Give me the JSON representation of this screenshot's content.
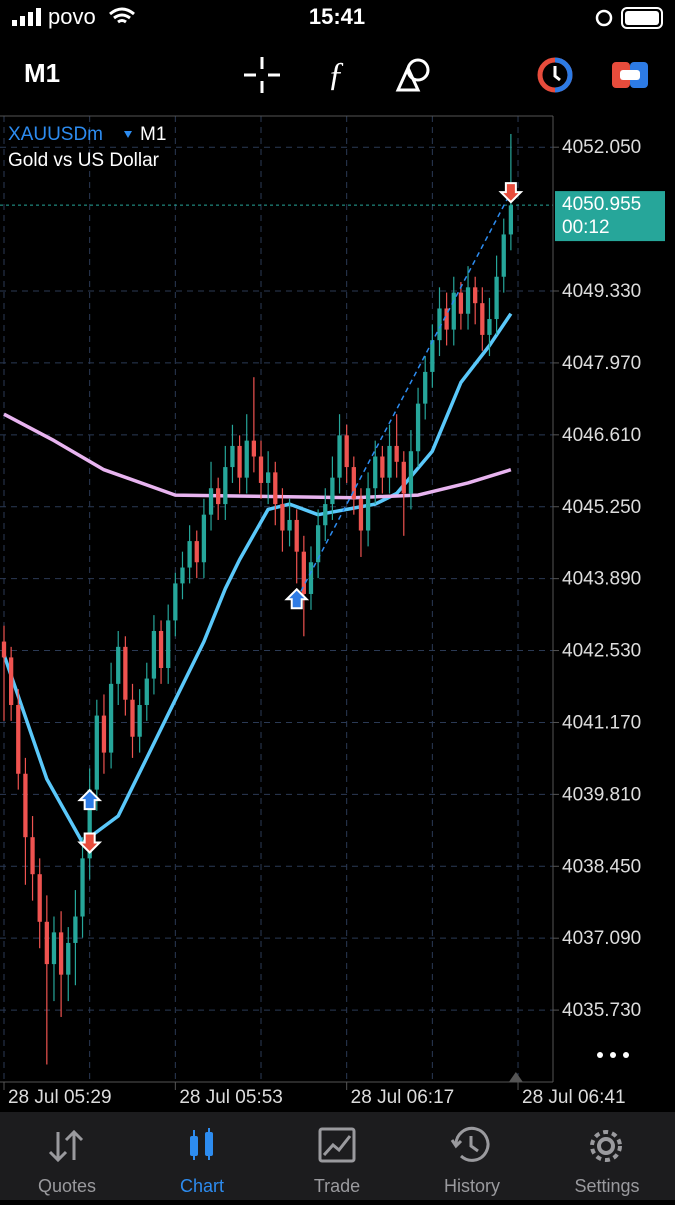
{
  "status_bar": {
    "carrier": "povo",
    "time": "15:41"
  },
  "toolbar": {
    "timeframe": "M1"
  },
  "chart_header": {
    "symbol": "XAUUSDm",
    "timeframe": "M1",
    "description": "Gold vs US Dollar"
  },
  "chart_data": {
    "type": "candlestick",
    "up_color": "#26a69a",
    "down_color": "#ef5350",
    "grid": true,
    "xlim": [
      -0.56,
      76.9
    ],
    "ylim": [
      4034.37,
      4052.64
    ],
    "xticks": [
      {
        "value": 0,
        "label": "28 Jul 05:29"
      },
      {
        "value": 24,
        "label": "28 Jul 05:53"
      },
      {
        "value": 48,
        "label": "28 Jul 06:17"
      },
      {
        "value": 72,
        "label": "28 Jul 06:41"
      }
    ],
    "yticks": [
      {
        "value": 4052.05,
        "label": "4052.050"
      },
      {
        "value": 4049.33,
        "label": "4049.330"
      },
      {
        "value": 4047.97,
        "label": "4047.970"
      },
      {
        "value": 4046.61,
        "label": "4046.610"
      },
      {
        "value": 4045.25,
        "label": "4045.250"
      },
      {
        "value": 4043.89,
        "label": "4043.890"
      },
      {
        "value": 4042.53,
        "label": "4042.530"
      },
      {
        "value": 4041.17,
        "label": "4041.170"
      },
      {
        "value": 4039.81,
        "label": "4039.810"
      },
      {
        "value": 4038.45,
        "label": "4038.450"
      },
      {
        "value": 4037.09,
        "label": "4037.090"
      },
      {
        "value": 4035.73,
        "label": "4035.730"
      }
    ],
    "candles": [
      [
        4042.7,
        4043.0,
        4041.2,
        4042.4
      ],
      [
        4042.4,
        4042.6,
        4041.2,
        4041.5
      ],
      [
        4041.5,
        4041.8,
        4039.9,
        4040.2
      ],
      [
        4040.2,
        4040.5,
        4038.1,
        4039.0
      ],
      [
        4039.0,
        4039.4,
        4037.8,
        4038.3
      ],
      [
        4038.3,
        4038.6,
        4036.9,
        4037.4
      ],
      [
        4037.4,
        4037.9,
        4034.7,
        4036.6
      ],
      [
        4036.6,
        4037.5,
        4035.9,
        4037.2
      ],
      [
        4037.2,
        4037.6,
        4035.6,
        4036.4
      ],
      [
        4036.4,
        4037.3,
        4035.9,
        4037.0
      ],
      [
        4037.0,
        4038.0,
        4036.2,
        4037.5
      ],
      [
        4037.5,
        4039.0,
        4037.1,
        4038.6
      ],
      [
        4038.6,
        4040.3,
        4038.2,
        4039.9
      ],
      [
        4039.9,
        4041.6,
        4039.5,
        4041.3
      ],
      [
        4041.3,
        4041.7,
        4040.2,
        4040.6
      ],
      [
        4040.6,
        4042.3,
        4040.3,
        4041.9
      ],
      [
        4041.9,
        4042.9,
        4041.5,
        4042.6
      ],
      [
        4042.6,
        4042.8,
        4041.3,
        4041.6
      ],
      [
        4041.6,
        4041.9,
        4040.5,
        4040.9
      ],
      [
        4040.9,
        4041.8,
        4040.6,
        4041.5
      ],
      [
        4041.5,
        4042.3,
        4041.2,
        4042.0
      ],
      [
        4042.0,
        4043.2,
        4041.7,
        4042.9
      ],
      [
        4042.9,
        4043.1,
        4041.9,
        4042.2
      ],
      [
        4042.2,
        4043.4,
        4041.9,
        4043.1
      ],
      [
        4043.1,
        4044.0,
        4042.8,
        4043.8
      ],
      [
        4043.8,
        4044.4,
        4043.5,
        4044.1
      ],
      [
        4044.1,
        4044.9,
        4043.8,
        4044.6
      ],
      [
        4044.6,
        4044.8,
        4043.9,
        4044.2
      ],
      [
        4044.2,
        4045.4,
        4043.9,
        4045.1
      ],
      [
        4045.1,
        4046.1,
        4044.8,
        4045.6
      ],
      [
        4045.6,
        4045.8,
        4045.0,
        4045.3
      ],
      [
        4045.3,
        4046.4,
        4045.0,
        4046.0
      ],
      [
        4046.0,
        4046.8,
        4045.7,
        4046.4
      ],
      [
        4046.4,
        4046.6,
        4045.5,
        4045.8
      ],
      [
        4045.8,
        4047.0,
        4045.5,
        4046.5
      ],
      [
        4046.5,
        4047.7,
        4045.9,
        4046.2
      ],
      [
        4046.2,
        4046.5,
        4045.4,
        4045.7
      ],
      [
        4045.7,
        4046.3,
        4045.3,
        4045.9
      ],
      [
        4045.9,
        4046.1,
        4044.9,
        4045.3
      ],
      [
        4045.3,
        4045.6,
        4044.4,
        4044.8
      ],
      [
        4044.8,
        4045.4,
        4044.5,
        4045.0
      ],
      [
        4045.0,
        4045.2,
        4043.8,
        4044.4
      ],
      [
        4044.4,
        4044.7,
        4042.8,
        4043.6
      ],
      [
        4043.6,
        4044.5,
        4043.3,
        4044.2
      ],
      [
        4044.2,
        4045.2,
        4043.9,
        4044.9
      ],
      [
        4044.9,
        4045.6,
        4044.6,
        4045.3
      ],
      [
        4045.3,
        4046.2,
        4045.0,
        4045.8
      ],
      [
        4045.8,
        4047.0,
        4045.5,
        4046.6
      ],
      [
        4046.6,
        4046.8,
        4045.7,
        4046.0
      ],
      [
        4046.0,
        4046.2,
        4045.1,
        4045.4
      ],
      [
        4045.4,
        4045.6,
        4044.3,
        4044.8
      ],
      [
        4044.8,
        4045.9,
        4044.5,
        4045.6
      ],
      [
        4045.6,
        4046.5,
        4045.3,
        4046.2
      ],
      [
        4046.2,
        4046.4,
        4045.5,
        4045.8
      ],
      [
        4045.8,
        4046.8,
        4045.5,
        4046.4
      ],
      [
        4046.4,
        4047.0,
        4045.8,
        4046.1
      ],
      [
        4046.1,
        4046.3,
        4044.7,
        4045.5
      ],
      [
        4045.5,
        4046.7,
        4045.2,
        4046.3
      ],
      [
        4046.3,
        4047.5,
        4046.0,
        4047.2
      ],
      [
        4047.2,
        4048.1,
        4046.9,
        4047.8
      ],
      [
        4047.8,
        4048.7,
        4047.5,
        4048.4
      ],
      [
        4048.4,
        4049.4,
        4048.1,
        4049.0
      ],
      [
        4049.0,
        4049.3,
        4048.3,
        4048.6
      ],
      [
        4048.6,
        4049.6,
        4048.3,
        4049.3
      ],
      [
        4049.3,
        4049.5,
        4048.6,
        4048.9
      ],
      [
        4048.9,
        4049.8,
        4048.6,
        4049.4
      ],
      [
        4049.4,
        4049.6,
        4048.7,
        4049.1
      ],
      [
        4049.1,
        4049.4,
        4048.2,
        4048.5
      ],
      [
        4048.5,
        4049.2,
        4048.1,
        4048.8
      ],
      [
        4048.8,
        4050.0,
        4048.5,
        4049.6
      ],
      [
        4049.6,
        4050.7,
        4049.3,
        4050.4
      ],
      [
        4050.4,
        4052.3,
        4050.1,
        4050.95
      ]
    ],
    "series": [
      {
        "color": "#5ac8fa",
        "x": [
          0,
          6,
          11,
          16,
          20,
          24,
          28,
          31,
          33,
          37,
          40,
          44,
          48,
          52,
          55,
          60,
          64,
          68,
          71
        ],
        "values": [
          4042.45,
          4040.1,
          4038.9,
          4039.4,
          4040.5,
          4041.6,
          4042.7,
          4043.7,
          4044.25,
          4045.2,
          4045.3,
          4045.1,
          4045.2,
          4045.3,
          4045.5,
          4046.3,
          4047.6,
          4048.3,
          4048.9
        ]
      },
      {
        "color": "#e8b4f0",
        "x": [
          0,
          7,
          14,
          24,
          35,
          49,
          58,
          65,
          71
        ],
        "values": [
          4047.0,
          4046.5,
          4045.95,
          4045.47,
          4045.45,
          4045.42,
          4045.47,
          4045.7,
          4045.95
        ]
      }
    ],
    "trades": [
      {
        "x": 12,
        "price": 4039.7,
        "direction": "up"
      },
      {
        "x": 12,
        "price": 4038.9,
        "direction": "down"
      },
      {
        "x": 41,
        "price": 4043.5,
        "direction": "up"
      },
      {
        "x": 71,
        "price": 4051.2,
        "direction": "down"
      }
    ],
    "bid": 4050.955,
    "bid_color": "#26a69a",
    "timer": "00:12"
  },
  "tabs": [
    "Quotes",
    "Chart",
    "Trade",
    "History",
    "Settings"
  ]
}
